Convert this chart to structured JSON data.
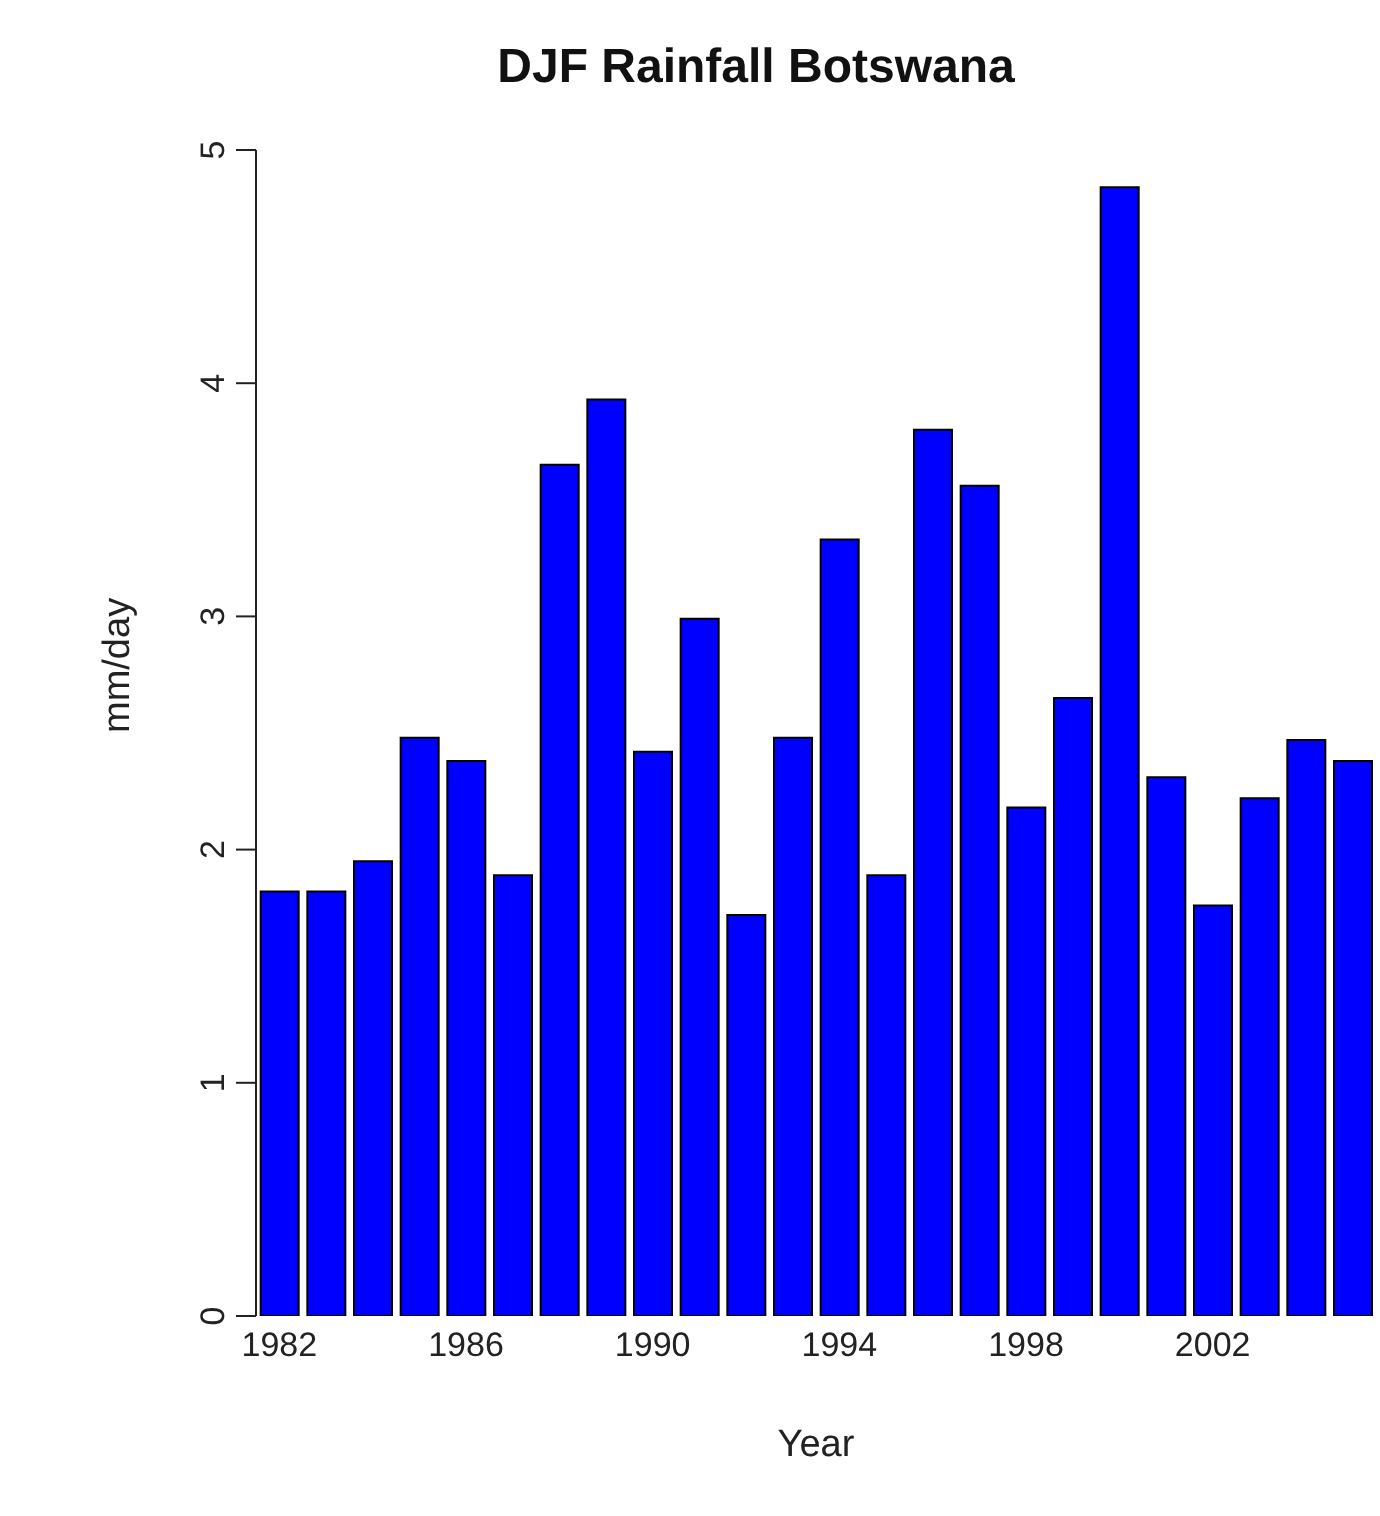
{
  "chart_data": {
    "type": "bar",
    "title": "DJF Rainfall Botswana",
    "xlabel": "Year",
    "ylabel": "mm/day",
    "categories": [
      "1982",
      null,
      null,
      null,
      "1986",
      null,
      null,
      null,
      "1990",
      null,
      null,
      null,
      "1994",
      null,
      null,
      null,
      "1998",
      null,
      null,
      null,
      "2002",
      null,
      null,
      null
    ],
    "values": [
      1.82,
      1.82,
      1.95,
      2.48,
      2.38,
      1.89,
      3.65,
      3.93,
      2.42,
      2.99,
      1.72,
      2.48,
      3.33,
      1.89,
      3.8,
      3.56,
      2.18,
      2.65,
      4.84,
      2.31,
      1.76,
      2.22,
      2.47,
      2.38
    ],
    "color": "#0000ff",
    "ylim": [
      0,
      5
    ],
    "yticks": [
      0,
      1,
      2,
      3,
      4,
      5
    ]
  }
}
